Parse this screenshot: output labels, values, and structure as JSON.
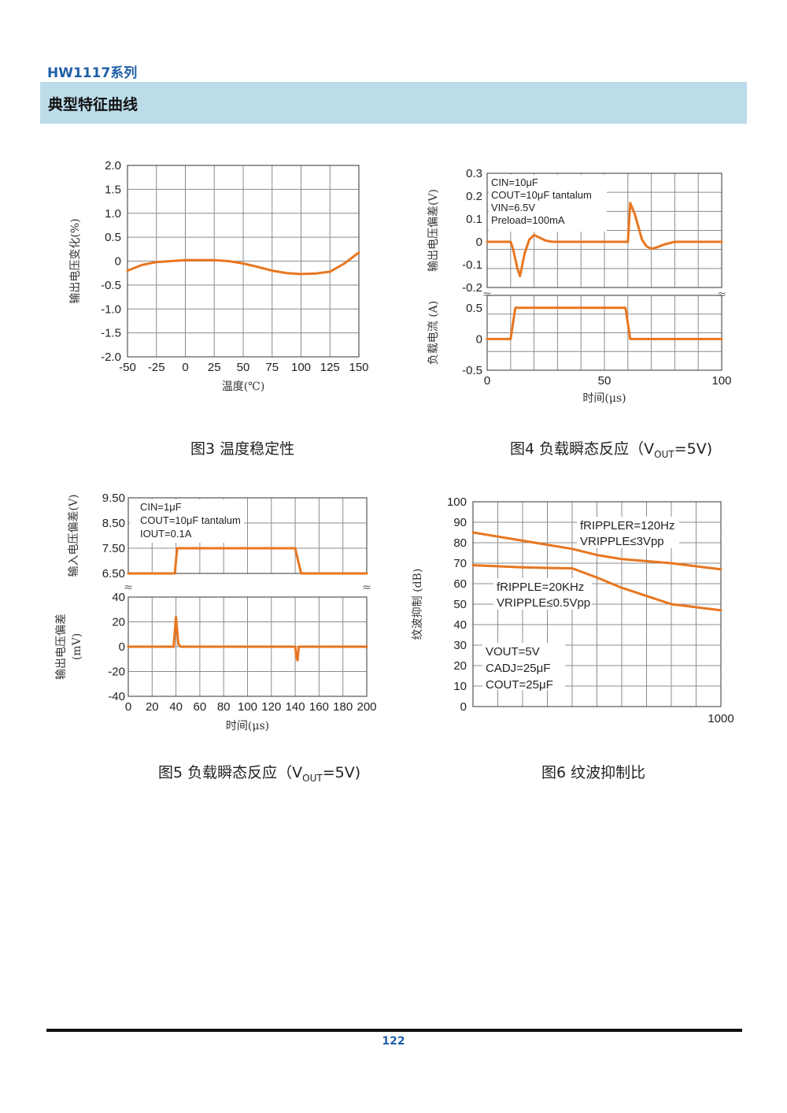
{
  "header": {
    "series_title": "HW1117系列",
    "section_title": "典型特征曲线"
  },
  "footer": {
    "page_number": "122"
  },
  "figures": {
    "fig3": {
      "caption": "图3 温度稳定性"
    },
    "fig4": {
      "caption_pre": "图4 负载瞬态反应（V",
      "caption_sub": "OUT",
      "caption_post": "=5V)"
    },
    "fig5": {
      "caption_pre": "图5 负载瞬态反应（V",
      "caption_sub": "OUT",
      "caption_post": "=5V)"
    },
    "fig6": {
      "caption": "图6 纹波抑制比"
    }
  },
  "chart_data": [
    {
      "id": "fig3",
      "type": "line",
      "xlabel": "温度(℃)",
      "ylabel": "输出电压变化(%)",
      "xlim": [
        -50,
        150
      ],
      "ylim": [
        -2.0,
        2.0
      ],
      "grid": true,
      "x_ticks": [
        -50,
        -25,
        0,
        25,
        50,
        75,
        100,
        125,
        150
      ],
      "x_tick_labels": [
        "-50",
        "-25",
        "0",
        "25",
        "50",
        "75",
        "100",
        "125",
        "150"
      ],
      "y_ticks": [
        2.0,
        1.5,
        1.0,
        0.5,
        0,
        -0.5,
        -1.0,
        -1.5,
        -2.0
      ],
      "y_tick_labels": [
        "2.0",
        "1.5",
        "1.0",
        "0.5",
        "0",
        "-0.5",
        "-1.0",
        "-1.5",
        "-2.0"
      ],
      "series": [
        {
          "x": [
            -50,
            -37.5,
            -25,
            -12.5,
            0,
            12.5,
            25,
            37.5,
            50,
            62.5,
            75,
            87.5,
            100,
            112.5,
            125,
            137.5,
            150
          ],
          "y": [
            -0.2,
            -0.08,
            -0.02,
            0.0,
            0.02,
            0.02,
            0.02,
            0.0,
            -0.05,
            -0.12,
            -0.2,
            -0.25,
            -0.27,
            -0.26,
            -0.22,
            -0.05,
            0.18
          ]
        }
      ]
    },
    {
      "id": "fig4",
      "type": "line",
      "xlabel": "时间(μs)",
      "xlim": [
        0,
        100
      ],
      "x_ticks": [
        0,
        50,
        100
      ],
      "x_tick_labels": [
        "0",
        "50",
        "100"
      ],
      "annotations": [
        "CIN=10μF",
        "COUT=10μF tantalum",
        "VIN=6.5V",
        "Preload=100mA"
      ],
      "panels": [
        {
          "ylabel": "输出电压偏差(V)",
          "ylim": [
            -0.2,
            0.3
          ],
          "y_ticks": [
            0.3,
            0.2,
            0.1,
            0,
            -0.1,
            -0.2
          ],
          "y_tick_labels": [
            "0.3",
            "0.2",
            "0.1",
            "0",
            "-0.1",
            "-0.2"
          ],
          "series": [
            {
              "x": [
                0,
                10,
                11,
                13,
                14,
                16,
                18,
                20,
                22,
                25,
                28,
                30,
                60,
                61,
                63,
                66,
                68,
                70,
                72,
                76,
                80,
                100
              ],
              "y": [
                0,
                0,
                -0.03,
                -0.12,
                -0.15,
                -0.05,
                0.01,
                0.03,
                0.02,
                0.005,
                0,
                0,
                0,
                0.17,
                0.12,
                0.01,
                -0.02,
                -0.03,
                -0.025,
                -0.01,
                0,
                0
              ]
            }
          ]
        },
        {
          "ylabel": "负载电流 (A)",
          "ylim": [
            -0.5,
            0.7
          ],
          "y_ticks": [
            0.5,
            0,
            -0.5
          ],
          "y_tick_labels": [
            "0.5",
            "0",
            "-0.5"
          ],
          "series": [
            {
              "x": [
                0,
                10,
                12,
                59,
                61,
                100
              ],
              "y": [
                0,
                0,
                0.5,
                0.5,
                0,
                0
              ]
            }
          ]
        }
      ]
    },
    {
      "id": "fig5",
      "type": "line",
      "xlabel": "时间(μs)",
      "xlim": [
        0,
        200
      ],
      "x_ticks": [
        0,
        20,
        40,
        60,
        80,
        100,
        120,
        140,
        160,
        180,
        200
      ],
      "x_tick_labels": [
        "0",
        "20",
        "40",
        "60",
        "80",
        "100",
        "120",
        "140",
        "160",
        "180",
        "200"
      ],
      "annotations": [
        "CIN=1μF",
        "COUT=10μF tantalum",
        "IOUT=0.1A"
      ],
      "panels": [
        {
          "ylabel": "输入电压偏差(V)",
          "ylim": [
            6.5,
            9.5
          ],
          "y_ticks": [
            9.5,
            8.5,
            7.5,
            6.5
          ],
          "y_tick_labels": [
            "9.50",
            "8.50",
            "7.50",
            "6.50"
          ],
          "series": [
            {
              "x": [
                0,
                39,
                41,
                140,
                142,
                145,
                200
              ],
              "y": [
                6.5,
                6.5,
                7.5,
                7.5,
                7.1,
                6.5,
                6.5
              ]
            }
          ]
        },
        {
          "ylabel": "输出电压偏差 (mV)",
          "ylim": [
            -40,
            40
          ],
          "y_ticks": [
            40,
            20,
            0,
            -20,
            -40
          ],
          "y_tick_labels": [
            "40",
            "20",
            "0",
            "-20",
            "-40"
          ],
          "series": [
            {
              "x": [
                0,
                38,
                40,
                42,
                44,
                140,
                141,
                142,
                143,
                200
              ],
              "y": [
                0,
                0,
                24,
                2,
                0,
                0,
                -8,
                -11,
                0,
                0
              ]
            }
          ]
        }
      ]
    },
    {
      "id": "fig6",
      "type": "line",
      "ylabel": "纹波抑制 (dB)",
      "ylim": [
        0,
        100
      ],
      "y_ticks": [
        100,
        90,
        80,
        70,
        60,
        50,
        40,
        30,
        20,
        10,
        0
      ],
      "y_tick_labels": [
        "100",
        "90",
        "80",
        "70",
        "60",
        "50",
        "40",
        "30",
        "20",
        "10",
        "0"
      ],
      "x_tick_labels": [
        "1000"
      ],
      "grid": true,
      "series": [
        {
          "label_lines": [
            "fRIPPLER=120Hz",
            "VRIPPLE≤3Vpp"
          ],
          "x": [
            0,
            0.1,
            0.2,
            0.3,
            0.4,
            0.5,
            0.6,
            0.7,
            0.8,
            0.9,
            1.0
          ],
          "y": [
            85,
            83,
            81,
            79,
            77,
            74,
            72,
            71,
            70,
            68.5,
            67
          ]
        },
        {
          "label_lines": [
            "fRIPPLE=20KHz",
            "VRIPPLE≤0.5Vpp"
          ],
          "x": [
            0,
            0.1,
            0.2,
            0.3,
            0.4,
            0.5,
            0.6,
            0.7,
            0.8,
            0.9,
            1.0
          ],
          "y": [
            69,
            68.5,
            68,
            67.7,
            67.5,
            63,
            58,
            54,
            50,
            48.5,
            47
          ]
        }
      ],
      "annotations": [
        "VOUT=5V",
        "CADJ=25μF",
        "COUT=25μF"
      ]
    }
  ]
}
